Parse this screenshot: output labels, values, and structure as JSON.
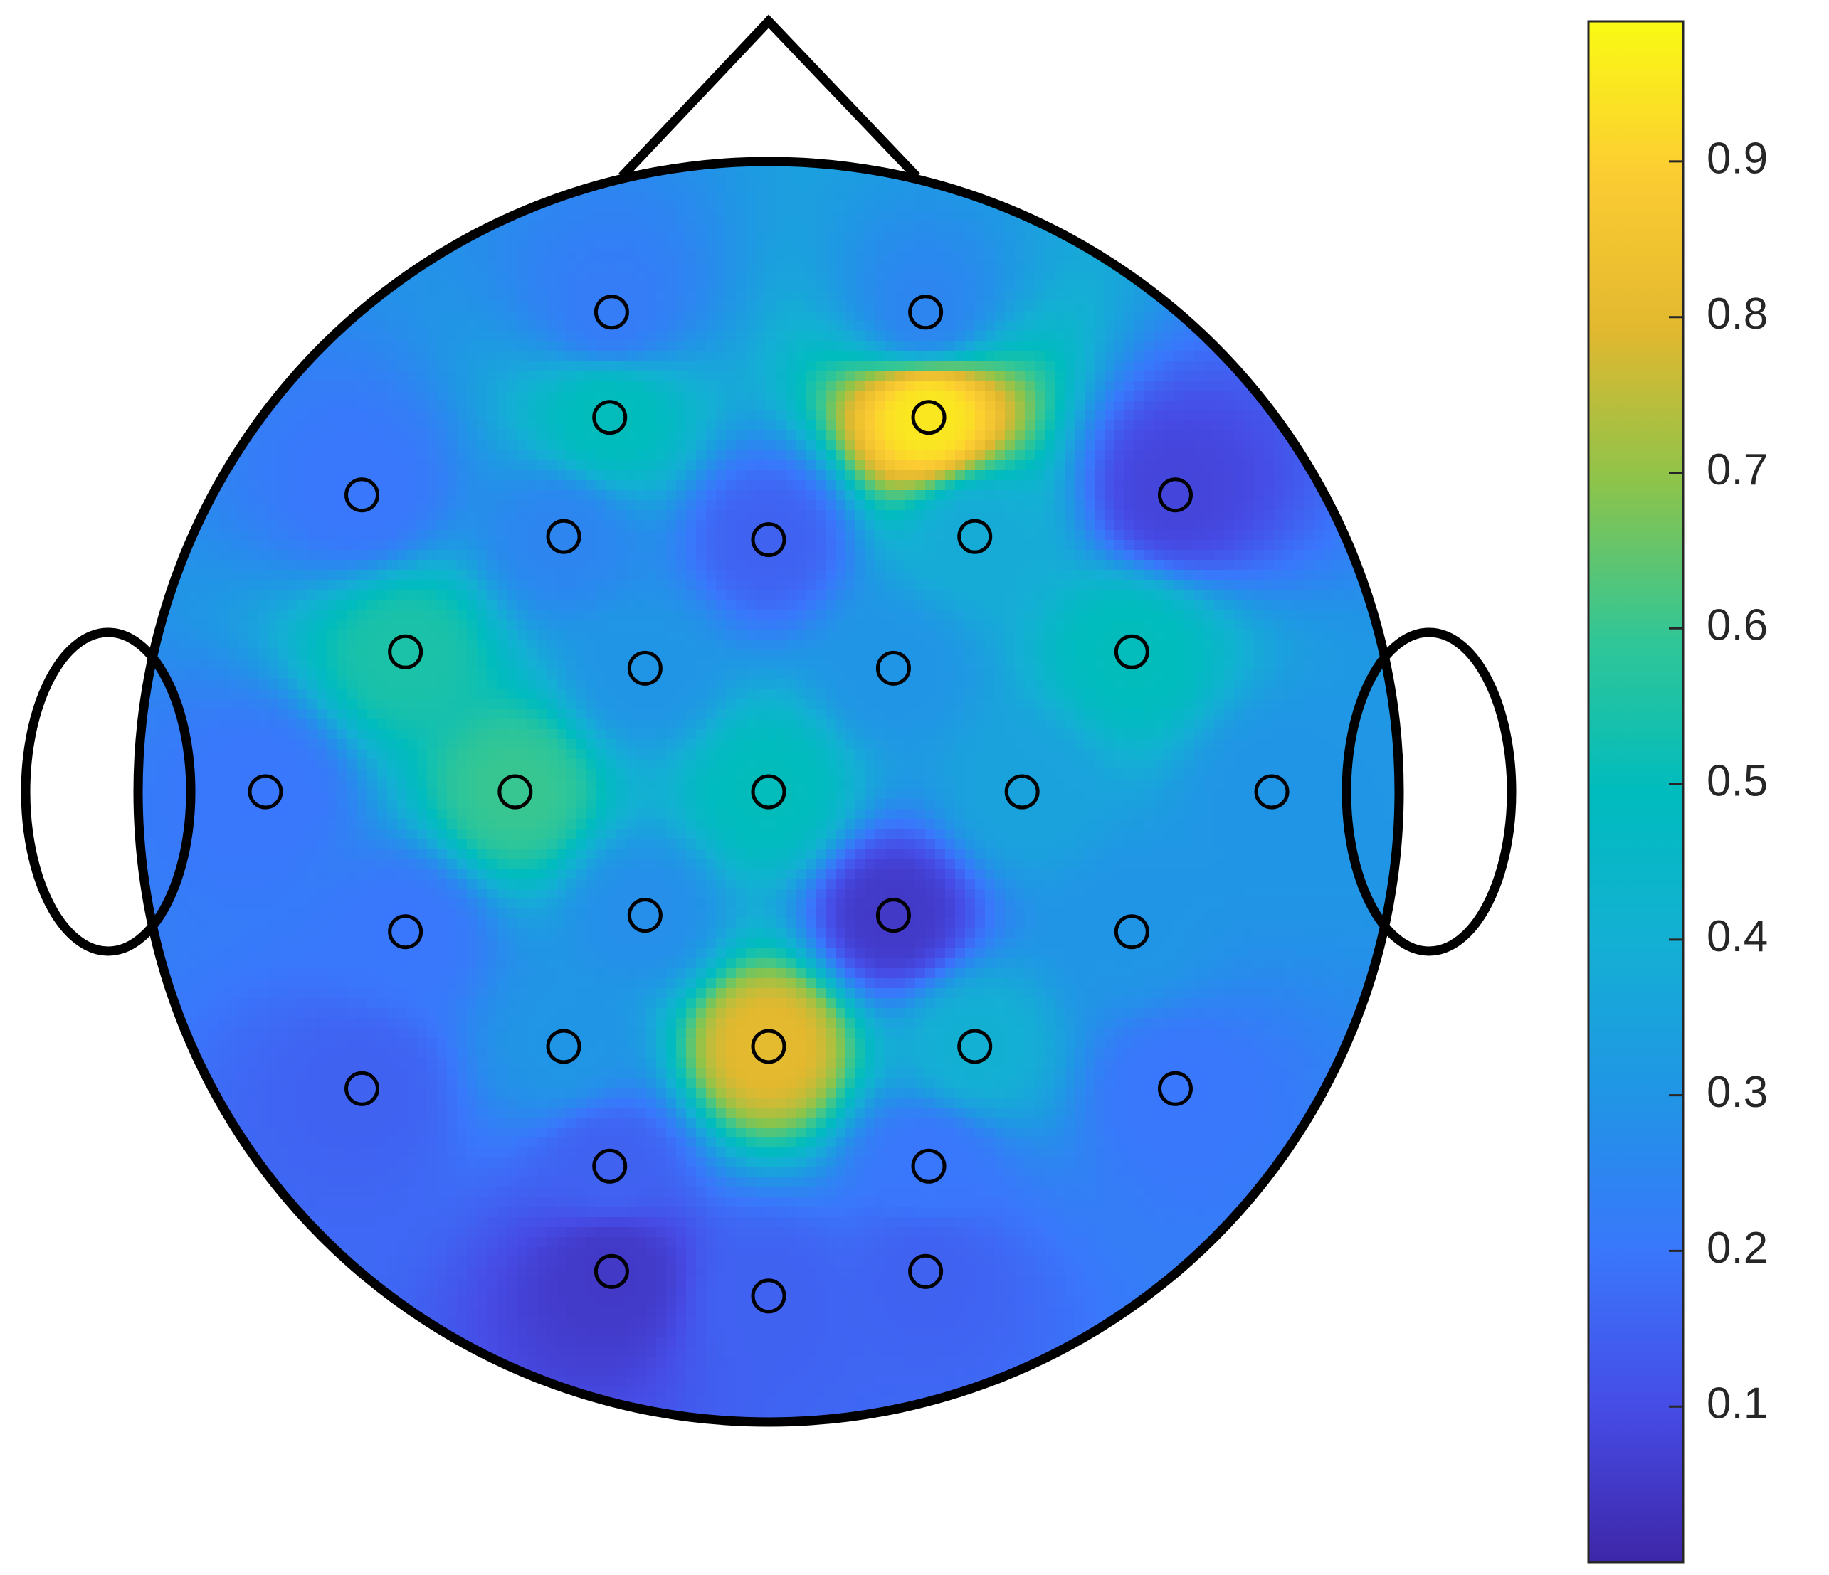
{
  "chart_data": {
    "type": "topomap",
    "x": [
      -0.249,
      0.249,
      -0.252,
      0.254,
      -0.645,
      0.645,
      -0.325,
      0,
      0.327,
      -0.576,
      -0.196,
      0.198,
      0.576,
      -0.798,
      -0.402,
      0,
      0.402,
      0.798,
      -0.576,
      -0.196,
      0.198,
      0.576,
      -0.325,
      0,
      0.327,
      -0.645,
      0.645,
      -0.252,
      0.254,
      -0.249,
      0.249,
      0
    ],
    "y": [
      0.761,
      0.761,
      0.594,
      0.594,
      0.471,
      0.471,
      0.405,
      0.4,
      0.405,
      0.222,
      0.196,
      0.196,
      0.222,
      0,
      0,
      0,
      0,
      0,
      -0.222,
      -0.196,
      -0.196,
      -0.222,
      -0.404,
      -0.404,
      -0.404,
      -0.471,
      -0.471,
      -0.594,
      -0.594,
      -0.761,
      -0.761,
      -0.8
    ],
    "values": [
      0.22,
      0.25,
      0.5,
      0.95,
      0.2,
      0.08,
      0.25,
      0.15,
      0.38,
      0.55,
      0.3,
      0.3,
      0.5,
      0.2,
      0.6,
      0.5,
      0.35,
      0.3,
      0.2,
      0.28,
      0.05,
      0.3,
      0.3,
      0.8,
      0.4,
      0.15,
      0.2,
      0.15,
      0.2,
      0.05,
      0.15,
      0.15
    ],
    "colormap": "parula",
    "clim": [
      0,
      0.99
    ],
    "cticks": [
      0.1,
      0.2,
      0.3,
      0.4,
      0.5,
      0.6,
      0.7,
      0.8,
      0.9
    ]
  }
}
